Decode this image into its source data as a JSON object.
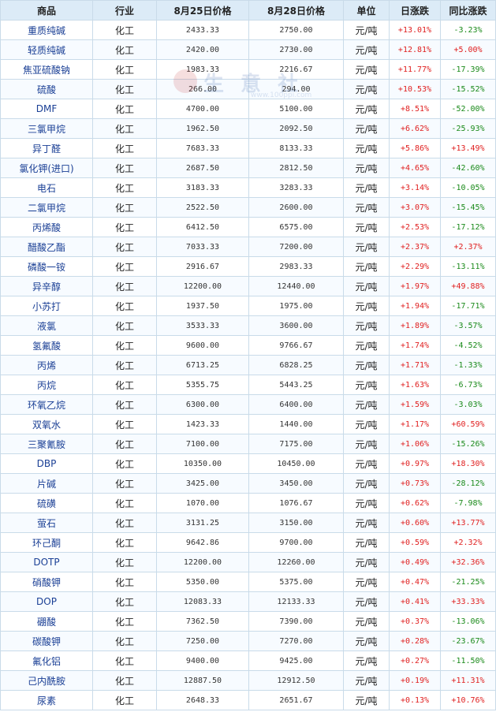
{
  "table": {
    "headers": [
      "商品",
      "行业",
      "8月25日价格",
      "8月28日价格",
      "单位",
      "日涨跌",
      "同比涨跌"
    ],
    "rows": [
      {
        "name": "重质纯碱",
        "industry": "化工",
        "price1": "2433.33",
        "price2": "2750.00",
        "unit": "元/吨",
        "daily": "+13.01%",
        "yoy": "-3.23%"
      },
      {
        "name": "轻质纯碱",
        "industry": "化工",
        "price1": "2420.00",
        "price2": "2730.00",
        "unit": "元/吨",
        "daily": "+12.81%",
        "yoy": "+5.00%"
      },
      {
        "name": "焦亚硫酸钠",
        "industry": "化工",
        "price1": "1983.33",
        "price2": "2216.67",
        "unit": "元/吨",
        "daily": "+11.77%",
        "yoy": "-17.39%"
      },
      {
        "name": "硫酸",
        "industry": "化工",
        "price1": "266.00",
        "price2": "294.00",
        "unit": "元/吨",
        "daily": "+10.53%",
        "yoy": "-15.52%"
      },
      {
        "name": "DMF",
        "industry": "化工",
        "price1": "4700.00",
        "price2": "5100.00",
        "unit": "元/吨",
        "daily": "+8.51%",
        "yoy": "-52.00%"
      },
      {
        "name": "三氯甲烷",
        "industry": "化工",
        "price1": "1962.50",
        "price2": "2092.50",
        "unit": "元/吨",
        "daily": "+6.62%",
        "yoy": "-25.93%"
      },
      {
        "name": "异丁醛",
        "industry": "化工",
        "price1": "7683.33",
        "price2": "8133.33",
        "unit": "元/吨",
        "daily": "+5.86%",
        "yoy": "+13.49%"
      },
      {
        "name": "氯化钾(进口)",
        "industry": "化工",
        "price1": "2687.50",
        "price2": "2812.50",
        "unit": "元/吨",
        "daily": "+4.65%",
        "yoy": "-42.60%"
      },
      {
        "name": "电石",
        "industry": "化工",
        "price1": "3183.33",
        "price2": "3283.33",
        "unit": "元/吨",
        "daily": "+3.14%",
        "yoy": "-10.05%"
      },
      {
        "name": "二氯甲烷",
        "industry": "化工",
        "price1": "2522.50",
        "price2": "2600.00",
        "unit": "元/吨",
        "daily": "+3.07%",
        "yoy": "-15.45%"
      },
      {
        "name": "丙烯酸",
        "industry": "化工",
        "price1": "6412.50",
        "price2": "6575.00",
        "unit": "元/吨",
        "daily": "+2.53%",
        "yoy": "-17.12%"
      },
      {
        "name": "醋酸乙酯",
        "industry": "化工",
        "price1": "7033.33",
        "price2": "7200.00",
        "unit": "元/吨",
        "daily": "+2.37%",
        "yoy": "+2.37%"
      },
      {
        "name": "磷酸一铵",
        "industry": "化工",
        "price1": "2916.67",
        "price2": "2983.33",
        "unit": "元/吨",
        "daily": "+2.29%",
        "yoy": "-13.11%"
      },
      {
        "name": "异辛醇",
        "industry": "化工",
        "price1": "12200.00",
        "price2": "12440.00",
        "unit": "元/吨",
        "daily": "+1.97%",
        "yoy": "+49.88%"
      },
      {
        "name": "小苏打",
        "industry": "化工",
        "price1": "1937.50",
        "price2": "1975.00",
        "unit": "元/吨",
        "daily": "+1.94%",
        "yoy": "-17.71%"
      },
      {
        "name": "液氯",
        "industry": "化工",
        "price1": "3533.33",
        "price2": "3600.00",
        "unit": "元/吨",
        "daily": "+1.89%",
        "yoy": "-3.57%"
      },
      {
        "name": "氢氟酸",
        "industry": "化工",
        "price1": "9600.00",
        "price2": "9766.67",
        "unit": "元/吨",
        "daily": "+1.74%",
        "yoy": "-4.52%"
      },
      {
        "name": "丙烯",
        "industry": "化工",
        "price1": "6713.25",
        "price2": "6828.25",
        "unit": "元/吨",
        "daily": "+1.71%",
        "yoy": "-1.33%"
      },
      {
        "name": "丙烷",
        "industry": "化工",
        "price1": "5355.75",
        "price2": "5443.25",
        "unit": "元/吨",
        "daily": "+1.63%",
        "yoy": "-6.73%"
      },
      {
        "name": "环氧乙烷",
        "industry": "化工",
        "price1": "6300.00",
        "price2": "6400.00",
        "unit": "元/吨",
        "daily": "+1.59%",
        "yoy": "-3.03%"
      },
      {
        "name": "双氧水",
        "industry": "化工",
        "price1": "1423.33",
        "price2": "1440.00",
        "unit": "元/吨",
        "daily": "+1.17%",
        "yoy": "+60.59%"
      },
      {
        "name": "三聚氰胺",
        "industry": "化工",
        "price1": "7100.00",
        "price2": "7175.00",
        "unit": "元/吨",
        "daily": "+1.06%",
        "yoy": "-15.26%"
      },
      {
        "name": "DBP",
        "industry": "化工",
        "price1": "10350.00",
        "price2": "10450.00",
        "unit": "元/吨",
        "daily": "+0.97%",
        "yoy": "+18.30%"
      },
      {
        "name": "片碱",
        "industry": "化工",
        "price1": "3425.00",
        "price2": "3450.00",
        "unit": "元/吨",
        "daily": "+0.73%",
        "yoy": "-28.12%"
      },
      {
        "name": "硫磺",
        "industry": "化工",
        "price1": "1070.00",
        "price2": "1076.67",
        "unit": "元/吨",
        "daily": "+0.62%",
        "yoy": "-7.98%"
      },
      {
        "name": "萤石",
        "industry": "化工",
        "price1": "3131.25",
        "price2": "3150.00",
        "unit": "元/吨",
        "daily": "+0.60%",
        "yoy": "+13.77%"
      },
      {
        "name": "环己酮",
        "industry": "化工",
        "price1": "9642.86",
        "price2": "9700.00",
        "unit": "元/吨",
        "daily": "+0.59%",
        "yoy": "+2.32%"
      },
      {
        "name": "DOTP",
        "industry": "化工",
        "price1": "12200.00",
        "price2": "12260.00",
        "unit": "元/吨",
        "daily": "+0.49%",
        "yoy": "+32.36%"
      },
      {
        "name": "硝酸钾",
        "industry": "化工",
        "price1": "5350.00",
        "price2": "5375.00",
        "unit": "元/吨",
        "daily": "+0.47%",
        "yoy": "-21.25%"
      },
      {
        "name": "DOP",
        "industry": "化工",
        "price1": "12083.33",
        "price2": "12133.33",
        "unit": "元/吨",
        "daily": "+0.41%",
        "yoy": "+33.33%"
      },
      {
        "name": "硼酸",
        "industry": "化工",
        "price1": "7362.50",
        "price2": "7390.00",
        "unit": "元/吨",
        "daily": "+0.37%",
        "yoy": "-13.06%"
      },
      {
        "name": "碳酸钾",
        "industry": "化工",
        "price1": "7250.00",
        "price2": "7270.00",
        "unit": "元/吨",
        "daily": "+0.28%",
        "yoy": "-23.67%"
      },
      {
        "name": "氟化铝",
        "industry": "化工",
        "price1": "9400.00",
        "price2": "9425.00",
        "unit": "元/吨",
        "daily": "+0.27%",
        "yoy": "-11.50%"
      },
      {
        "name": "己内酰胺",
        "industry": "化工",
        "price1": "12887.50",
        "price2": "12912.50",
        "unit": "元/吨",
        "daily": "+0.19%",
        "yoy": "+11.31%"
      },
      {
        "name": "尿素",
        "industry": "化工",
        "price1": "2648.33",
        "price2": "2651.67",
        "unit": "元/吨",
        "daily": "+0.13%",
        "yoy": "+10.76%"
      }
    ]
  },
  "watermark": {
    "text": "生 意 社",
    "url": "www.100ppi.com"
  },
  "colors": {
    "up": "#e02020",
    "down": "#1a8a1a",
    "header_bg": "#dcebf7",
    "border": "#c9dbe9"
  }
}
